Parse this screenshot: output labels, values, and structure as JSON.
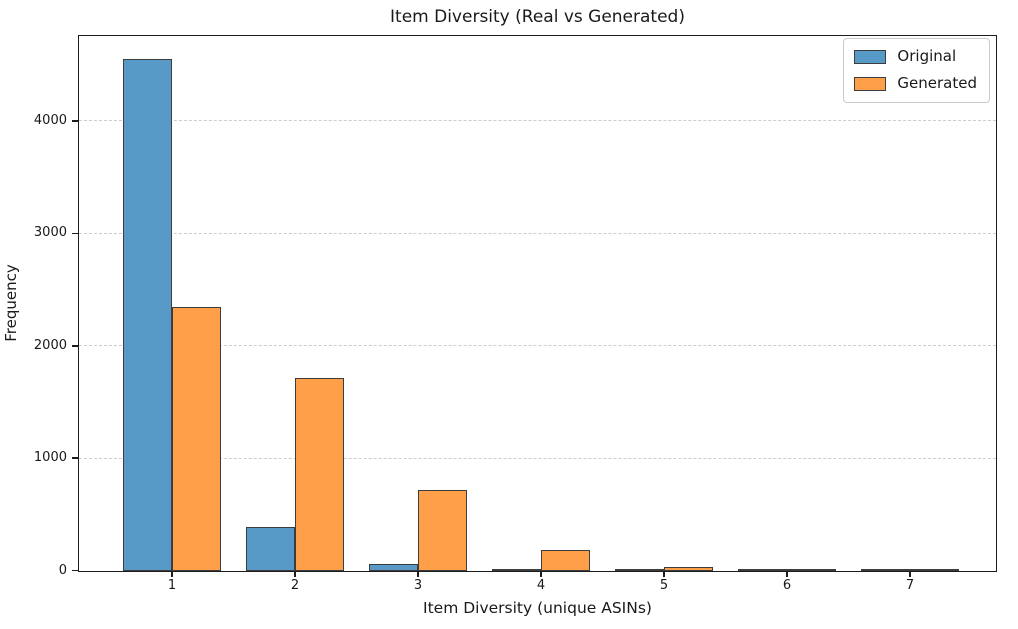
{
  "chart_data": {
    "type": "bar",
    "title": "Item Diversity (Real vs Generated)",
    "xlabel": "Item Diversity (unique ASINs)",
    "ylabel": "Frequency",
    "categories": [
      1,
      2,
      3,
      4,
      5,
      6,
      7
    ],
    "series": [
      {
        "name": "Original",
        "color": "#5799c7",
        "values": [
          4550,
          390,
          60,
          20,
          12,
          8,
          2
        ]
      },
      {
        "name": "Generated",
        "color": "#ff9f4a",
        "values": [
          2350,
          1720,
          725,
          185,
          40,
          15,
          12
        ]
      }
    ],
    "bar_edge_color": "#3d3d3d",
    "yticks": [
      0,
      1000,
      2000,
      3000,
      4000
    ],
    "ylim": [
      0,
      4750
    ],
    "grid": "horizontal-dashed",
    "grid_color": "#cdcdcd",
    "spine_color": "#1c1c1c",
    "legend_position": "upper-right"
  }
}
